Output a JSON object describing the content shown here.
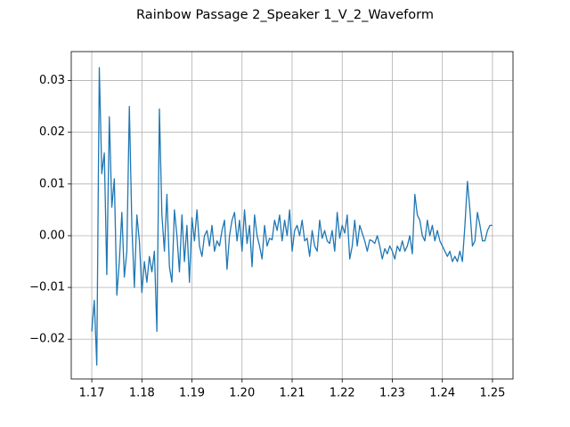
{
  "chart_data": {
    "type": "line",
    "title": "Rainbow Passage 2_Speaker 1_V_2_Waveform",
    "x": [
      1.17,
      1.1705,
      1.171,
      1.1715,
      1.172,
      1.1725,
      1.173,
      1.1735,
      1.174,
      1.1745,
      1.175,
      1.1755,
      1.176,
      1.1765,
      1.177,
      1.1775,
      1.178,
      1.1785,
      1.179,
      1.1795,
      1.18,
      1.1805,
      1.181,
      1.1815,
      1.182,
      1.1825,
      1.183,
      1.1835,
      1.184,
      1.1845,
      1.185,
      1.1855,
      1.186,
      1.1865,
      1.187,
      1.1875,
      1.188,
      1.1885,
      1.189,
      1.1895,
      1.19,
      1.1905,
      1.191,
      1.1915,
      1.192,
      1.1925,
      1.193,
      1.1935,
      1.194,
      1.1945,
      1.195,
      1.1955,
      1.196,
      1.1965,
      1.197,
      1.1975,
      1.198,
      1.1985,
      1.199,
      1.1995,
      1.2,
      1.2005,
      1.201,
      1.2015,
      1.202,
      1.2025,
      1.203,
      1.2035,
      1.204,
      1.2045,
      1.205,
      1.2055,
      1.206,
      1.2065,
      1.207,
      1.2075,
      1.208,
      1.2085,
      1.209,
      1.2095,
      1.21,
      1.2105,
      1.211,
      1.2115,
      1.212,
      1.2125,
      1.213,
      1.2135,
      1.214,
      1.2145,
      1.215,
      1.2155,
      1.216,
      1.2165,
      1.217,
      1.2175,
      1.218,
      1.2185,
      1.219,
      1.2195,
      1.22,
      1.2205,
      1.221,
      1.2215,
      1.222,
      1.2225,
      1.223,
      1.2235,
      1.224,
      1.2245,
      1.225,
      1.2255,
      1.226,
      1.2265,
      1.227,
      1.2275,
      1.228,
      1.2285,
      1.229,
      1.2295,
      1.23,
      1.2305,
      1.231,
      1.2315,
      1.232,
      1.2325,
      1.233,
      1.2335,
      1.234,
      1.2345,
      1.235,
      1.2355,
      1.236,
      1.2365,
      1.237,
      1.2375,
      1.238,
      1.2385,
      1.239,
      1.2395,
      1.24,
      1.2405,
      1.241,
      1.2415,
      1.242,
      1.2425,
      1.243,
      1.2435,
      1.244,
      1.2445,
      1.245,
      1.2455,
      1.246,
      1.2465,
      1.247,
      1.2475,
      1.248,
      1.2485,
      1.249,
      1.2495,
      1.25
    ],
    "series": [
      {
        "color": "#1f77b4",
        "values": [
          -0.0185,
          -0.0125,
          -0.025,
          0.0325,
          0.012,
          0.016,
          -0.0075,
          0.023,
          0.0055,
          0.011,
          -0.0115,
          -0.005,
          0.0045,
          -0.008,
          -0.003,
          0.025,
          0.002,
          -0.01,
          0.004,
          -0.001,
          -0.011,
          -0.005,
          -0.009,
          -0.004,
          -0.007,
          -0.003,
          -0.0185,
          0.0245,
          0.004,
          -0.003,
          0.008,
          -0.006,
          -0.009,
          0.005,
          0,
          -0.007,
          0.004,
          -0.005,
          0.002,
          -0.009,
          0.0035,
          -0.001,
          0.005,
          -0.002,
          -0.004,
          0,
          0.001,
          -0.002,
          0.002,
          -0.003,
          -0.001,
          -0.002,
          0.001,
          0.003,
          -0.0065,
          0,
          0.003,
          0.0045,
          -0.001,
          0.003,
          -0.003,
          0.005,
          -0.0015,
          0.002,
          -0.006,
          0.004,
          0,
          -0.002,
          -0.0045,
          0.002,
          -0.002,
          -0.0005,
          -0.0008,
          0.003,
          0.001,
          0.004,
          -0.001,
          0.003,
          0,
          0.005,
          -0.003,
          0.001,
          0.002,
          0,
          0.003,
          -0.001,
          -0.0005,
          -0.004,
          0.001,
          -0.002,
          -0.003,
          0.003,
          -0.0005,
          0.001,
          -0.001,
          -0.0015,
          0.001,
          -0.003,
          0.0045,
          -0.0005,
          0.002,
          0.0005,
          0.004,
          -0.0045,
          -0.002,
          0.003,
          -0.002,
          0.002,
          0.0005,
          -0.001,
          -0.003,
          -0.0008,
          -0.001,
          -0.0015,
          0,
          -0.002,
          -0.0045,
          -0.0025,
          -0.0035,
          -0.002,
          -0.003,
          -0.0045,
          -0.002,
          -0.003,
          -0.001,
          -0.003,
          -0.002,
          0,
          -0.0035,
          0.008,
          0.004,
          0.003,
          0,
          -0.001,
          0.003,
          0,
          0.002,
          -0.001,
          0.001,
          -0.001,
          -0.002,
          -0.003,
          -0.004,
          -0.003,
          -0.005,
          -0.004,
          -0.005,
          -0.003,
          -0.005,
          0.002,
          0.0105,
          0.005,
          -0.002,
          -0.001,
          0.0045,
          0.002,
          -0.001,
          -0.001,
          0.001,
          0.002,
          0.002
        ]
      }
    ],
    "xlim": [
      1.1659,
      1.2541
    ],
    "ylim": [
      -0.0277,
      0.0356
    ],
    "xticks": [
      1.17,
      1.18,
      1.19,
      {
        "value": 1.2,
        "label": "1.20"
      },
      1.21,
      1.22,
      1.23,
      1.24,
      1.25
    ],
    "yticks": [
      {
        "value": -0.02,
        "label": "−0.02"
      },
      {
        "value": -0.01,
        "label": "−0.01"
      },
      {
        "value": 0,
        "label": "0.00"
      },
      0.01,
      0.02,
      0.03
    ],
    "grid": true
  }
}
